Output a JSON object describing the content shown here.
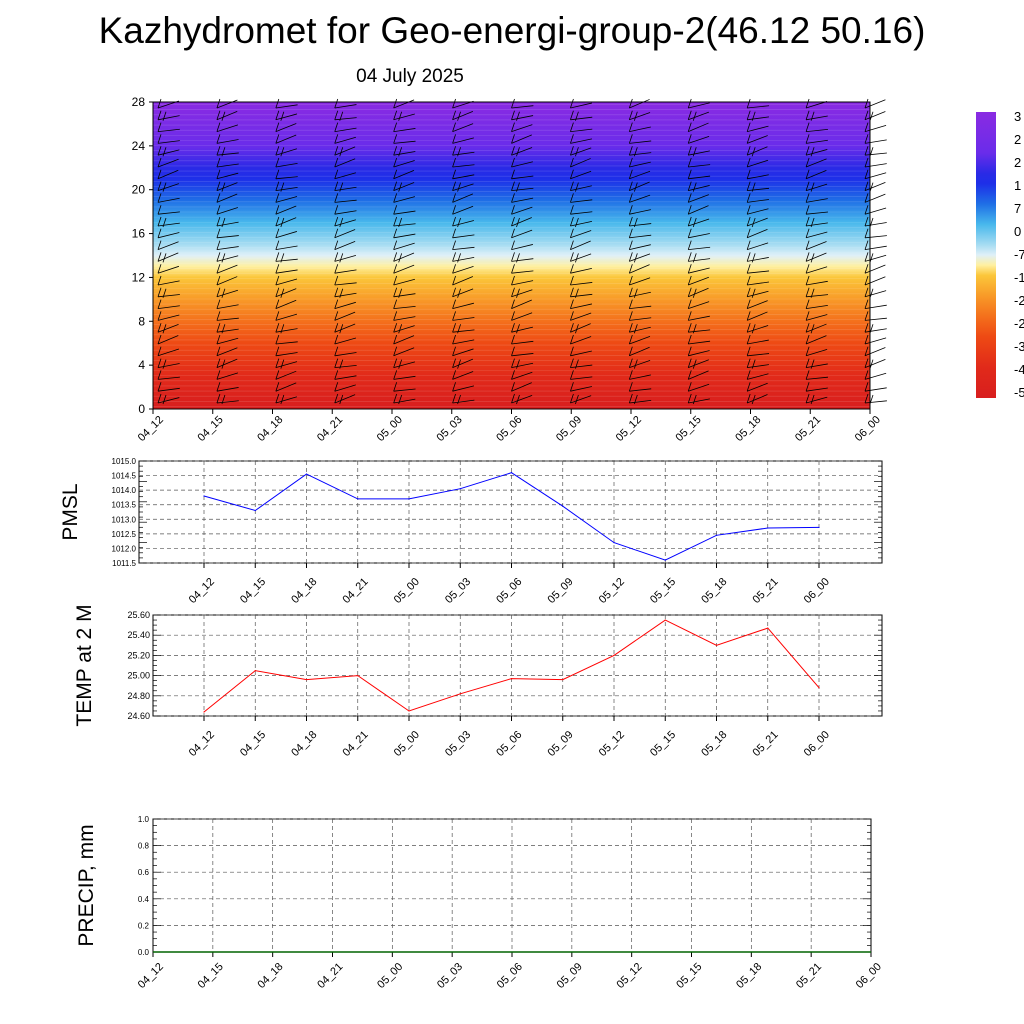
{
  "title": "Kazhydromet for Geo-energi-group-2(46.12 50.16)",
  "subtitle": "04 July 2025",
  "chart_data": [
    {
      "type": "heatmap",
      "name": "vertical-profile",
      "ylim": [
        0,
        28
      ],
      "yticks": [
        "0",
        "4",
        "8",
        "12",
        "16",
        "20",
        "24",
        "28"
      ],
      "x_tick_labels": [
        "04_12",
        "04_15",
        "04_18",
        "04_21",
        "05_00",
        "05_03",
        "05_06",
        "05_09",
        "05_12",
        "05_15",
        "05_18",
        "05_21",
        "06_00"
      ],
      "colorbar_labels": [
        "3",
        "2",
        "2",
        "1",
        "7",
        "0",
        "-7",
        "-1",
        "-2",
        "-2",
        "-3",
        "-4",
        "-5"
      ],
      "band_colors": {
        "0": "#d81e1e",
        "3": "#e12a1a",
        "6": "#ee4a14",
        "8": "#f4701c",
        "10": "#f89a28",
        "12": "#fbc63a",
        "13": "#fff0a0",
        "14": "#dff0f8",
        "15": "#a6dcf2",
        "17": "#48b8ec",
        "19": "#1f6fe6",
        "21": "#1e2fe8",
        "22": "#2a2ae6",
        "24": "#6a2cea",
        "28": "#8a2be2"
      }
    },
    {
      "type": "line",
      "name": "pmsl",
      "ylabel": "PMSL",
      "ylim": [
        1011.5,
        1015.0
      ],
      "yticks": [
        "1011.5",
        "1012.0",
        "1012.5",
        "1013.0",
        "1013.5",
        "1014.0",
        "1014.5",
        "1015.0"
      ],
      "categories": [
        "04_12",
        "04_15",
        "04_18",
        "04_21",
        "05_00",
        "05_03",
        "05_06",
        "05_09",
        "05_12",
        "05_15",
        "05_18",
        "05_21",
        "06_00"
      ],
      "values": [
        1013.8,
        1013.3,
        1014.55,
        1013.7,
        1013.7,
        1014.05,
        1014.6,
        1013.45,
        1012.2,
        1011.6,
        1012.45,
        1012.7,
        1012.72
      ],
      "color": "#0000ff"
    },
    {
      "type": "line",
      "name": "temp",
      "ylabel": "TEMP at 2 M",
      "ylim": [
        24.6,
        25.6
      ],
      "yticks": [
        "24.60",
        "24.80",
        "25.00",
        "25.20",
        "25.40",
        "25.60"
      ],
      "categories": [
        "04_12",
        "04_15",
        "04_18",
        "04_21",
        "05_00",
        "05_03",
        "05_06",
        "05_09",
        "05_12",
        "05_15",
        "05_18",
        "05_21",
        "06_00"
      ],
      "values": [
        24.64,
        25.05,
        24.96,
        25.0,
        24.65,
        24.82,
        24.97,
        24.96,
        25.2,
        25.55,
        25.3,
        25.47,
        24.88
      ],
      "color": "#ff0000"
    },
    {
      "type": "line",
      "name": "precip",
      "ylabel": "PRECIP, mm",
      "ylim": [
        0,
        1
      ],
      "yticks": [
        "0.0",
        "0.2",
        "0.4",
        "0.6",
        "0.8",
        "1.0"
      ],
      "categories": [
        "04_12",
        "04_15",
        "04_18",
        "04_21",
        "05_00",
        "05_03",
        "05_06",
        "05_09",
        "05_12",
        "05_15",
        "05_18",
        "05_21",
        "06_00"
      ],
      "values": [
        0,
        0,
        0,
        0,
        0,
        0,
        0,
        0,
        0,
        0,
        0,
        0,
        0
      ],
      "color": "#006400"
    }
  ]
}
